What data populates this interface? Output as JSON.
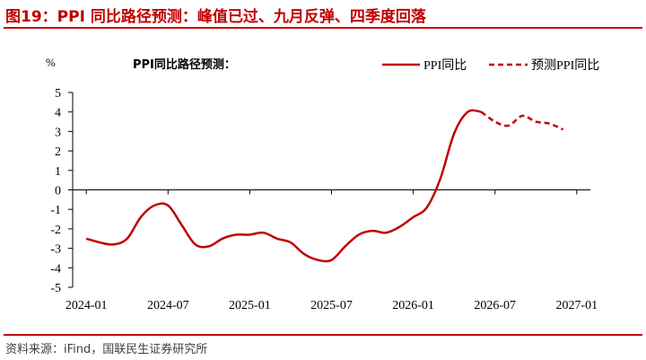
{
  "figure_title": "图19：PPI 同比路径预测：峰值已过、九月反弹、四季度回落",
  "source": "资料来源：iFind，国联民生证券研究所",
  "chart_data": {
    "type": "line",
    "title": "PPI同比路径预测：",
    "ylabel": "%",
    "xlabel": "",
    "ylim": [
      -5,
      5
    ],
    "yticks": [
      -5,
      -4,
      -3,
      -2,
      -1,
      0,
      1,
      2,
      3,
      4,
      5
    ],
    "xlim": [
      "2023-12",
      "2027-02"
    ],
    "x_tick_labels": [
      "2024-01",
      "2024-07",
      "2025-01",
      "2025-07",
      "2026-01",
      "2026-07",
      "2027-01"
    ],
    "legend_position": "top-right",
    "grid": false,
    "series": [
      {
        "name": "PPI同比",
        "style": "solid",
        "color": "#c00000",
        "x": [
          "2024-01",
          "2024-02",
          "2024-03",
          "2024-04",
          "2024-05",
          "2024-06",
          "2024-07",
          "2024-08",
          "2024-09",
          "2024-10",
          "2024-11",
          "2024-12",
          "2025-01",
          "2025-02",
          "2025-03",
          "2025-04",
          "2025-05",
          "2025-06",
          "2025-07",
          "2025-08",
          "2025-09",
          "2025-10",
          "2025-11",
          "2025-12",
          "2026-01",
          "2026-02",
          "2026-03",
          "2026-04",
          "2026-05",
          "2026-06"
        ],
        "values": [
          -2.5,
          -2.7,
          -2.8,
          -2.5,
          -1.4,
          -0.8,
          -0.8,
          -1.8,
          -2.8,
          -2.9,
          -2.5,
          -2.3,
          -2.3,
          -2.2,
          -2.5,
          -2.7,
          -3.3,
          -3.6,
          -3.6,
          -2.9,
          -2.3,
          -2.1,
          -2.2,
          -1.9,
          -1.4,
          -0.9,
          0.6,
          2.9,
          4.0,
          4.0
        ]
      },
      {
        "name": "预测PPI同比",
        "style": "dashed",
        "color": "#c00000",
        "x": [
          "2026-06",
          "2026-07",
          "2026-08",
          "2026-09",
          "2026-10",
          "2026-11",
          "2026-12"
        ],
        "values": [
          4.0,
          3.5,
          3.3,
          3.8,
          3.5,
          3.4,
          3.1
        ]
      }
    ]
  }
}
